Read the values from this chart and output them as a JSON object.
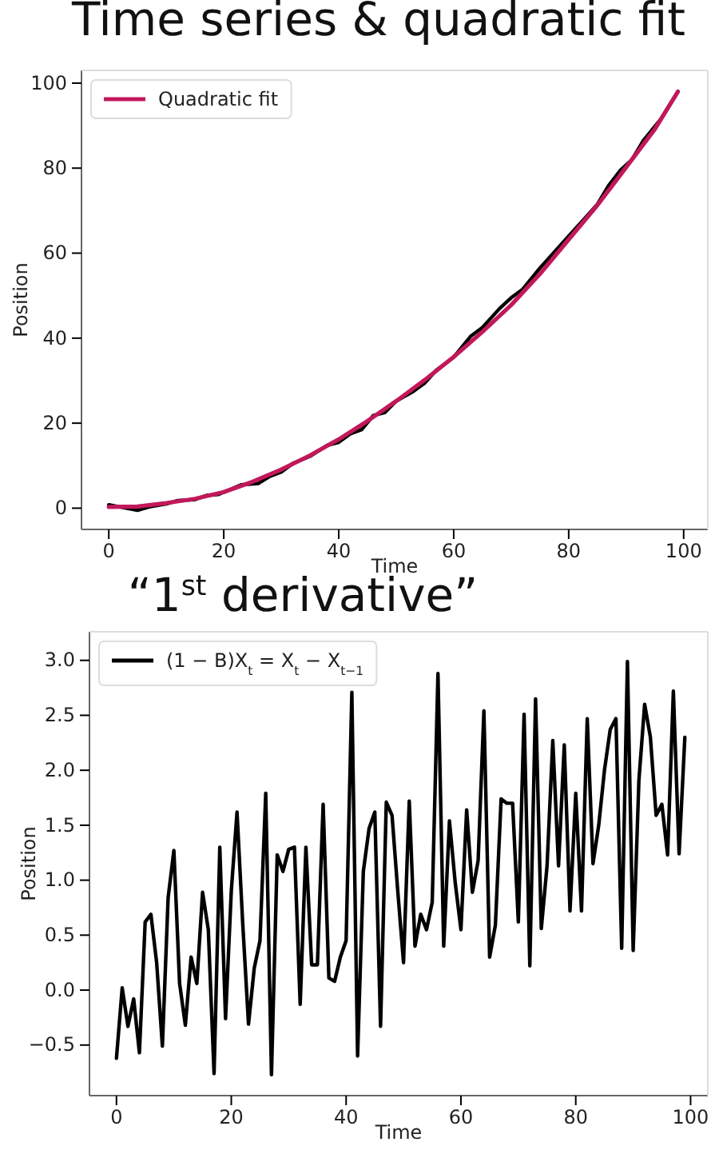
{
  "chart_data": [
    {
      "type": "line",
      "title": "Time series & quadratic fit",
      "xlabel": "Time",
      "ylabel": "Position",
      "xlim": [
        -4.75,
        104.2
      ],
      "ylim": [
        -5,
        103
      ],
      "xticks": [
        0,
        20,
        40,
        60,
        80,
        100
      ],
      "yticks": [
        0,
        20,
        40,
        60,
        80,
        100
      ],
      "grid": false,
      "legend": "top left",
      "marker": "none",
      "line_style": "solid",
      "series": [
        {
          "color": "#000000",
          "x": [
            0,
            3,
            5,
            7,
            10,
            12,
            15,
            17,
            19,
            21,
            23,
            26,
            28,
            30,
            32,
            35,
            38,
            40,
            42,
            44,
            46,
            48,
            50,
            53,
            55,
            57,
            60,
            63,
            65,
            68,
            70,
            72,
            75,
            77,
            80,
            83,
            85,
            87,
            89,
            91,
            93,
            96,
            99
          ],
          "values": [
            0.8,
            0.0,
            -0.5,
            0.3,
            1.0,
            1.8,
            2.0,
            3.0,
            3.2,
            4.3,
            5.5,
            5.8,
            7.5,
            8.5,
            10.5,
            12.2,
            14.8,
            15.5,
            17.5,
            18.5,
            21.8,
            22.5,
            25.2,
            27.5,
            29.5,
            32.5,
            35.5,
            40.5,
            42.5,
            47.0,
            49.5,
            51.5,
            56.5,
            59.5,
            64.0,
            68.5,
            71.5,
            76.0,
            79.5,
            82.0,
            86.5,
            91.5,
            98.0
          ]
        },
        {
          "name": "Quadratic fit",
          "color": "#c2185b",
          "x": [
            0,
            5,
            10,
            15,
            20,
            25,
            30,
            35,
            40,
            45,
            50,
            55,
            60,
            65,
            70,
            75,
            80,
            85,
            90,
            95,
            99
          ],
          "values": [
            0.3,
            0.4,
            1.2,
            2.2,
            3.8,
            6.2,
            9.1,
            12.4,
            16.2,
            20.5,
            25.2,
            30.2,
            35.6,
            41.5,
            47.8,
            55.1,
            63.2,
            71.3,
            80.2,
            89.2,
            98.0
          ]
        }
      ]
    },
    {
      "type": "line",
      "title": "“1$^{st}$ derivative”",
      "xlabel": "Time",
      "ylabel": "Position",
      "xlim": [
        -4.7,
        103
      ],
      "ylim": [
        -0.96,
        3.26
      ],
      "xticks": [
        0,
        20,
        40,
        60,
        80,
        100
      ],
      "yticks": [
        {
          "value": -0.5,
          "label": "−0.5"
        },
        {
          "value": 0,
          "label": "0.0"
        },
        {
          "value": 0.5,
          "label": "0.5"
        },
        {
          "value": 1,
          "label": "1.0"
        },
        {
          "value": 1.5,
          "label": "1.5"
        },
        {
          "value": 2,
          "label": "2.0"
        },
        {
          "value": 2.5,
          "label": "2.5"
        },
        {
          "value": 3,
          "label": "3.0"
        }
      ],
      "grid": false,
      "legend": "top left",
      "marker": "none",
      "line_style": "solid",
      "series": [
        {
          "name": "(1 − B)X$_{t}$ = X$_{t}$ − X$_{t−1}$",
          "color": "#000000",
          "x": [
            0,
            1,
            2,
            3,
            4,
            5,
            6,
            7,
            8,
            9,
            10,
            11,
            12,
            13,
            14,
            15,
            16,
            17,
            18,
            19,
            20,
            21,
            22,
            23,
            24,
            25,
            26,
            27,
            28,
            29,
            30,
            31,
            32,
            33,
            34,
            35,
            36,
            37,
            38,
            39,
            40,
            41,
            42,
            43,
            44,
            45,
            46,
            47,
            48,
            49,
            50,
            51,
            52,
            53,
            54,
            55,
            56,
            57,
            58,
            59,
            60,
            61,
            62,
            63,
            64,
            65,
            66,
            67,
            68,
            69,
            70,
            71,
            72,
            73,
            74,
            75,
            76,
            77,
            78,
            79,
            80,
            81,
            82,
            83,
            84,
            85,
            86,
            87,
            88,
            89,
            90,
            91,
            92,
            93,
            94,
            95,
            96,
            97,
            98,
            99
          ],
          "values": [
            -0.62,
            0.02,
            -0.33,
            -0.08,
            -0.57,
            0.62,
            0.69,
            0.25,
            -0.51,
            0.84,
            1.27,
            0.06,
            -0.32,
            0.3,
            0.06,
            0.89,
            0.55,
            -0.76,
            1.3,
            -0.26,
            0.9,
            1.62,
            0.6,
            -0.31,
            0.2,
            0.45,
            1.79,
            -0.77,
            1.23,
            1.08,
            1.28,
            1.3,
            -0.13,
            1.3,
            0.23,
            0.23,
            1.69,
            0.11,
            0.08,
            0.3,
            0.45,
            2.71,
            -0.6,
            1.08,
            1.47,
            1.62,
            -0.33,
            1.71,
            1.59,
            0.9,
            0.25,
            1.72,
            0.4,
            0.69,
            0.55,
            0.8,
            2.88,
            0.4,
            1.54,
            0.98,
            0.55,
            1.64,
            0.89,
            1.18,
            2.54,
            0.3,
            0.59,
            1.74,
            1.7,
            1.7,
            0.62,
            2.51,
            0.22,
            2.65,
            0.56,
            1.13,
            2.27,
            1.13,
            2.23,
            0.72,
            1.79,
            0.72,
            2.47,
            1.15,
            1.5,
            2.0,
            2.37,
            2.47,
            0.38,
            2.99,
            0.36,
            1.91,
            2.6,
            2.3,
            1.59,
            1.69,
            1.23,
            2.72,
            1.24,
            2.3
          ]
        }
      ]
    }
  ]
}
